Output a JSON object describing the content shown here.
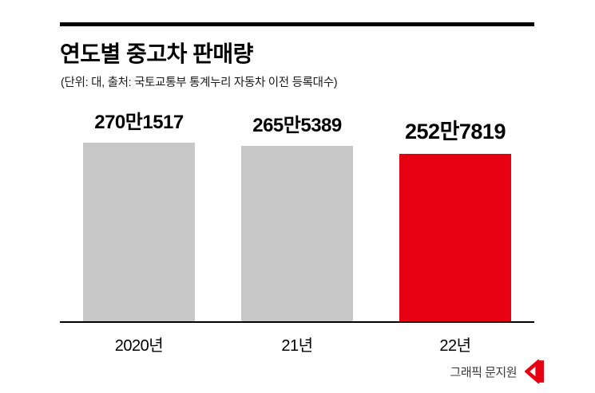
{
  "header": {
    "title": "연도별 중고차 판매량",
    "subtitle": "(단위: 대, 출처: 국토교통부 통계누리 자동차 이전 등록대수)"
  },
  "chart_data": {
    "type": "bar",
    "title": "연도별 중고차 판매량",
    "subtitle": "(단위: 대, 출처: 국토교통부 통계누리 자동차 이전 등록대수)",
    "categories": [
      "2020년",
      "21년",
      "22년"
    ],
    "values": [
      2701517,
      2655389,
      2527819
    ],
    "value_labels": [
      "270만1517",
      "265만5389",
      "252만7819"
    ],
    "series": [
      {
        "name": "연도별 중고차 판매량",
        "values": [
          2701517,
          2655389,
          2527819
        ]
      }
    ],
    "bar_colors": [
      "#c7c7c7",
      "#c7c7c7",
      "#e60012"
    ],
    "highlight_index": 2,
    "xlabel": "",
    "ylabel": "",
    "ylim": [
      0,
      2701517
    ],
    "grid": false,
    "legend": false,
    "unit": "대",
    "source": "국토교통부 통계누리 자동차 이전 등록대수"
  },
  "footer": {
    "credit": "그래픽 문지원",
    "logo": "red-flag-logo-icon"
  },
  "colors": {
    "bar_gray": "#c7c7c7",
    "bar_red": "#e60012",
    "axis_black": "#000000",
    "credit_text": "#3a3a3a"
  }
}
